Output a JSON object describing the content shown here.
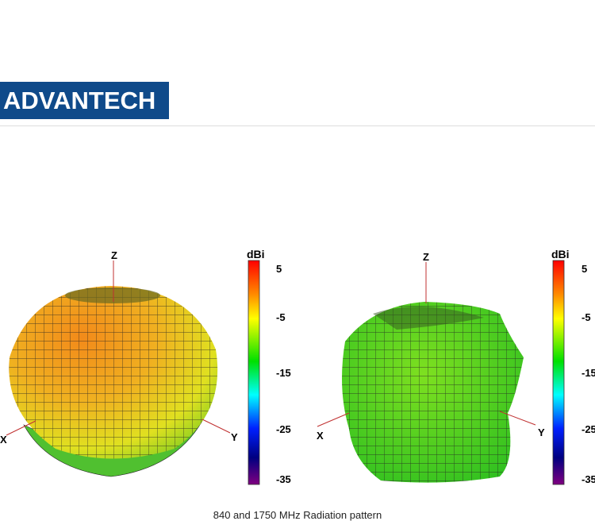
{
  "header": {
    "logo_text": "ADVANTECH"
  },
  "figures": [
    {
      "axes": {
        "z": "Z",
        "x": "X",
        "y": "Y"
      },
      "colorbar": {
        "unit": "dBi",
        "ticks": [
          "5",
          "-5",
          "-15",
          "-25",
          "-35"
        ]
      }
    },
    {
      "axes": {
        "z": "Z",
        "x": "X",
        "y": "Y"
      },
      "colorbar": {
        "unit": "dBi",
        "ticks": [
          "5",
          "-5",
          "-15",
          "-25",
          "-35"
        ]
      }
    }
  ],
  "colorbar_colors": [
    "#ff0000",
    "#ff8a00",
    "#ffff00",
    "#00e000",
    "#00ffff",
    "#0020ff",
    "#000080",
    "#800080"
  ],
  "caption": "840 and 1750 MHz Radiation pattern"
}
